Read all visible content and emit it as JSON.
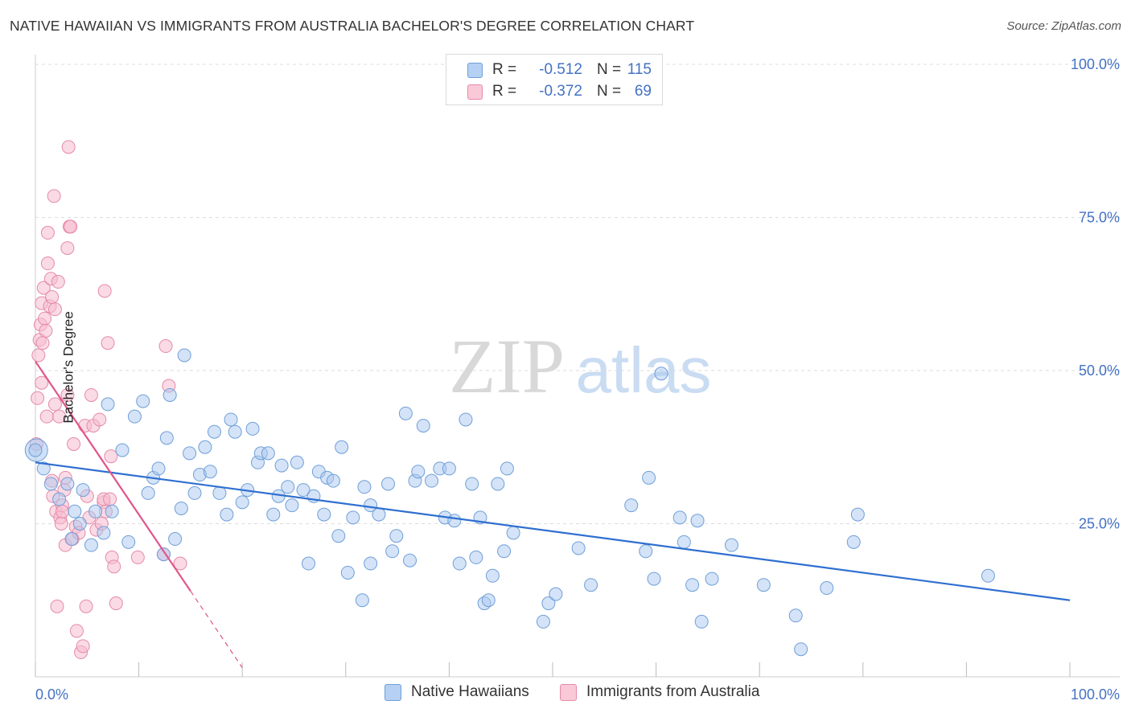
{
  "title": "NATIVE HAWAIIAN VS IMMIGRANTS FROM AUSTRALIA BACHELOR'S DEGREE CORRELATION CHART",
  "source": "Source: ZipAtlas.com",
  "watermark": {
    "zip": "ZIP",
    "atlas": "atlas"
  },
  "colors": {
    "blue_fill": "#a9c8f0",
    "blue_stroke": "#6f9fd8",
    "blue_line": "#2f6fd0",
    "pink_fill": "#f6bcd0",
    "pink_stroke": "#e58aa8",
    "pink_line": "#e0558a",
    "axis_text": "#4472c4",
    "grid": "#dddddd"
  },
  "legend": {
    "rows": [
      {
        "series": "Native Hawaiians",
        "r_label": "R =",
        "r_value": "-0.512",
        "n_label": "N =",
        "n_value": "115"
      },
      {
        "series": "Immigrants from Australia",
        "r_label": "R =",
        "r_value": "-0.372",
        "n_label": "N =",
        "n_value": "69"
      }
    ]
  },
  "bottom_legend": [
    "Native Hawaiians",
    "Immigrants from Australia"
  ],
  "chart_data": {
    "type": "scatter",
    "title": "NATIVE HAWAIIAN VS IMMIGRANTS FROM AUSTRALIA BACHELOR'S DEGREE CORRELATION CHART",
    "xlabel": "",
    "ylabel": "Bachelor's Degree",
    "xlim": [
      0,
      100
    ],
    "ylim": [
      0,
      100
    ],
    "x_tick_labels": [
      "0.0%",
      "100.0%"
    ],
    "y_tick_labels": [
      "25.0%",
      "50.0%",
      "75.0%",
      "100.0%"
    ],
    "y_tick_values": [
      25,
      50,
      75,
      100
    ],
    "grid": true,
    "series": [
      {
        "name": "Native Hawaiians",
        "color": "#a9c8f0",
        "trend": {
          "x": [
            0,
            100
          ],
          "y": [
            35.0,
            12.5
          ]
        },
        "points": [
          [
            0.0,
            37.0
          ],
          [
            0.8,
            34.0
          ],
          [
            1.5,
            31.5
          ],
          [
            2.3,
            29.0
          ],
          [
            3.1,
            31.5
          ],
          [
            3.5,
            22.5
          ],
          [
            3.8,
            27.0
          ],
          [
            4.3,
            25.0
          ],
          [
            4.6,
            30.5
          ],
          [
            5.4,
            21.5
          ],
          [
            5.8,
            27.0
          ],
          [
            6.6,
            23.5
          ],
          [
            7.4,
            27.0
          ],
          [
            8.4,
            37.0
          ],
          [
            9.0,
            22.0
          ],
          [
            7.0,
            44.5
          ],
          [
            9.6,
            42.5
          ],
          [
            10.4,
            45.0
          ],
          [
            10.9,
            30.0
          ],
          [
            11.4,
            32.5
          ],
          [
            11.9,
            34.0
          ],
          [
            12.4,
            20.0
          ],
          [
            12.7,
            39.0
          ],
          [
            13.0,
            46.0
          ],
          [
            13.5,
            22.5
          ],
          [
            14.1,
            27.5
          ],
          [
            14.4,
            52.5
          ],
          [
            14.9,
            36.5
          ],
          [
            15.4,
            30.0
          ],
          [
            15.9,
            33.0
          ],
          [
            16.4,
            37.5
          ],
          [
            16.9,
            33.5
          ],
          [
            17.3,
            40.0
          ],
          [
            17.8,
            30.0
          ],
          [
            18.5,
            26.5
          ],
          [
            18.9,
            42.0
          ],
          [
            19.3,
            40.0
          ],
          [
            20.0,
            28.5
          ],
          [
            20.5,
            30.5
          ],
          [
            21.0,
            40.5
          ],
          [
            21.5,
            35.0
          ],
          [
            21.8,
            36.5
          ],
          [
            22.5,
            36.5
          ],
          [
            23.0,
            26.5
          ],
          [
            23.5,
            29.5
          ],
          [
            23.8,
            34.5
          ],
          [
            24.4,
            31.0
          ],
          [
            24.8,
            28.0
          ],
          [
            25.3,
            35.0
          ],
          [
            25.9,
            30.5
          ],
          [
            26.4,
            18.5
          ],
          [
            26.9,
            29.5
          ],
          [
            27.4,
            33.5
          ],
          [
            27.9,
            26.5
          ],
          [
            28.2,
            32.5
          ],
          [
            28.8,
            32.0
          ],
          [
            29.3,
            23.0
          ],
          [
            29.6,
            37.5
          ],
          [
            30.2,
            17.0
          ],
          [
            30.7,
            26.0
          ],
          [
            31.6,
            12.5
          ],
          [
            31.8,
            31.0
          ],
          [
            32.4,
            28.0
          ],
          [
            32.4,
            18.5
          ],
          [
            33.2,
            26.5
          ],
          [
            34.1,
            31.5
          ],
          [
            34.5,
            20.5
          ],
          [
            34.9,
            23.0
          ],
          [
            35.8,
            43.0
          ],
          [
            36.2,
            19.0
          ],
          [
            36.7,
            32.0
          ],
          [
            37.0,
            33.5
          ],
          [
            37.5,
            41.0
          ],
          [
            38.3,
            32.0
          ],
          [
            39.1,
            34.0
          ],
          [
            39.6,
            26.0
          ],
          [
            40.0,
            34.0
          ],
          [
            40.5,
            25.5
          ],
          [
            41.0,
            18.5
          ],
          [
            41.6,
            42.0
          ],
          [
            42.2,
            31.5
          ],
          [
            42.6,
            19.5
          ],
          [
            43.0,
            26.0
          ],
          [
            43.4,
            12.0
          ],
          [
            43.8,
            12.5
          ],
          [
            44.2,
            16.5
          ],
          [
            44.7,
            31.5
          ],
          [
            45.3,
            20.5
          ],
          [
            45.6,
            34.0
          ],
          [
            46.2,
            23.5
          ],
          [
            49.1,
            9.0
          ],
          [
            49.6,
            12.0
          ],
          [
            50.3,
            13.5
          ],
          [
            52.5,
            21.0
          ],
          [
            53.7,
            15.0
          ],
          [
            57.6,
            28.0
          ],
          [
            59.0,
            20.5
          ],
          [
            59.3,
            32.5
          ],
          [
            59.8,
            16.0
          ],
          [
            60.5,
            49.5
          ],
          [
            62.3,
            26.0
          ],
          [
            62.7,
            22.0
          ],
          [
            63.5,
            15.0
          ],
          [
            64.0,
            25.5
          ],
          [
            64.4,
            9.0
          ],
          [
            65.4,
            16.0
          ],
          [
            67.3,
            21.5
          ],
          [
            70.4,
            15.0
          ],
          [
            73.5,
            10.0
          ],
          [
            74.0,
            4.5
          ],
          [
            76.5,
            14.5
          ],
          [
            79.1,
            22.0
          ],
          [
            79.5,
            26.5
          ],
          [
            92.1,
            16.5
          ]
        ],
        "big_points": [
          [
            0.1,
            37.0
          ]
        ]
      },
      {
        "name": "Immigrants from Australia",
        "color": "#f6bcd0",
        "trend": {
          "x": [
            0,
            15
          ],
          "y": [
            51.5,
            14.0
          ],
          "dashed_to": [
            20,
            1.5
          ]
        },
        "points": [
          [
            0.1,
            38.0
          ],
          [
            0.2,
            45.5
          ],
          [
            0.3,
            52.5
          ],
          [
            0.4,
            55.0
          ],
          [
            0.5,
            57.5
          ],
          [
            0.6,
            48.0
          ],
          [
            0.6,
            61.0
          ],
          [
            0.7,
            54.5
          ],
          [
            0.8,
            63.5
          ],
          [
            0.9,
            58.5
          ],
          [
            1.0,
            56.5
          ],
          [
            1.1,
            42.5
          ],
          [
            1.2,
            67.5
          ],
          [
            1.2,
            72.5
          ],
          [
            1.4,
            60.5
          ],
          [
            1.5,
            65.0
          ],
          [
            1.6,
            62.0
          ],
          [
            1.6,
            32.0
          ],
          [
            1.7,
            29.5
          ],
          [
            1.8,
            78.5
          ],
          [
            1.9,
            44.5
          ],
          [
            1.9,
            60.0
          ],
          [
            2.0,
            27.0
          ],
          [
            2.1,
            11.5
          ],
          [
            2.2,
            64.5
          ],
          [
            2.3,
            42.5
          ],
          [
            2.4,
            26.0
          ],
          [
            2.5,
            25.0
          ],
          [
            2.6,
            28.0
          ],
          [
            2.6,
            27.0
          ],
          [
            2.8,
            30.5
          ],
          [
            2.9,
            32.5
          ],
          [
            2.9,
            21.5
          ],
          [
            3.1,
            46.0
          ],
          [
            3.1,
            70.0
          ],
          [
            3.2,
            86.5
          ],
          [
            3.3,
            73.5
          ],
          [
            3.4,
            73.5
          ],
          [
            3.6,
            22.5
          ],
          [
            3.7,
            38.0
          ],
          [
            3.9,
            24.5
          ],
          [
            4.0,
            7.5
          ],
          [
            4.2,
            23.5
          ],
          [
            4.4,
            4.0
          ],
          [
            4.6,
            5.0
          ],
          [
            4.8,
            41.0
          ],
          [
            4.9,
            11.5
          ],
          [
            5.0,
            29.5
          ],
          [
            5.2,
            26.0
          ],
          [
            5.4,
            46.0
          ],
          [
            5.6,
            41.0
          ],
          [
            5.9,
            24.0
          ],
          [
            6.2,
            42.0
          ],
          [
            6.4,
            25.0
          ],
          [
            6.6,
            28.5
          ],
          [
            6.6,
            29.0
          ],
          [
            6.7,
            63.0
          ],
          [
            6.8,
            27.0
          ],
          [
            7.0,
            54.5
          ],
          [
            7.2,
            29.0
          ],
          [
            7.3,
            36.0
          ],
          [
            7.4,
            19.5
          ],
          [
            7.6,
            18.0
          ],
          [
            7.8,
            12.0
          ],
          [
            9.9,
            19.5
          ],
          [
            12.4,
            20.0
          ],
          [
            12.6,
            54.0
          ],
          [
            12.9,
            47.5
          ],
          [
            14.0,
            18.5
          ]
        ]
      }
    ]
  }
}
